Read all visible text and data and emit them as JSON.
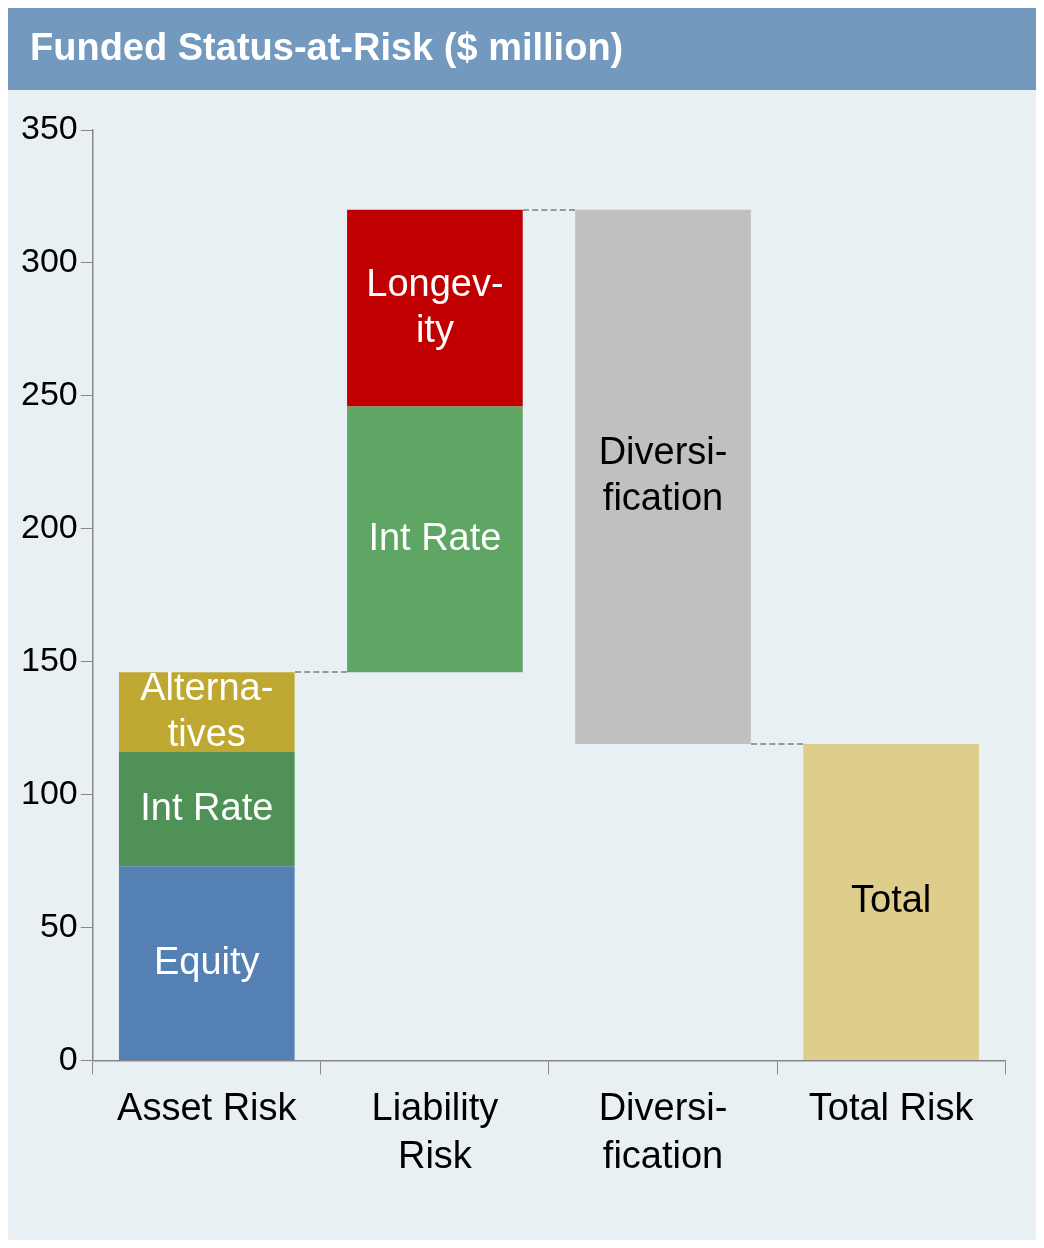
{
  "chart_data": {
    "type": "bar",
    "title": "Funded Status-at-Risk ($ million)",
    "categories": [
      "Asset Risk",
      "Liability Risk",
      "Diversi-fication",
      "Total Risk"
    ],
    "stacked": true,
    "series": [
      {
        "name": "Equity",
        "color": "#5580b4",
        "values": [
          73,
          null,
          null,
          null
        ]
      },
      {
        "name": "Int Rate",
        "color": "#4f9157",
        "values": [
          43,
          null,
          null,
          null
        ]
      },
      {
        "name": "Alterna-tives",
        "color": "#bfa832",
        "values": [
          30,
          null,
          null,
          null
        ]
      },
      {
        "name": "Int Rate",
        "color": "#5fa664",
        "values": [
          null,
          100,
          null,
          null
        ],
        "base": [
          null,
          146,
          null,
          null
        ]
      },
      {
        "name": "Longev-ity",
        "color": "#c00000",
        "values": [
          null,
          74,
          null,
          null
        ]
      },
      {
        "name": "Diversi-fication",
        "color": "#c0c0c0",
        "values": [
          null,
          null,
          -201,
          null
        ],
        "base": [
          null,
          null,
          320,
          null
        ]
      },
      {
        "name": "Total",
        "color": "#dfcd8c",
        "values": [
          null,
          null,
          null,
          119
        ]
      }
    ],
    "ylim": [
      0,
      350
    ],
    "yticks": [
      0,
      50,
      100,
      150,
      200,
      250,
      300,
      350
    ],
    "grid": false,
    "legend": false
  }
}
